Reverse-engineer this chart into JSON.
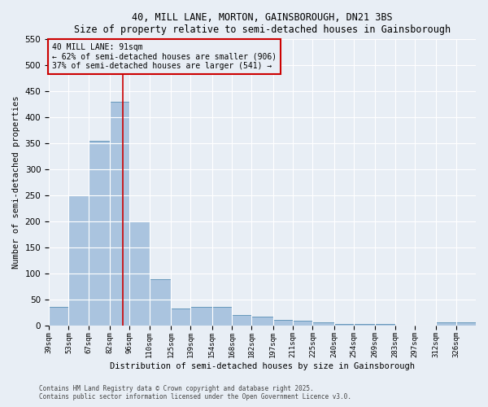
{
  "title": "40, MILL LANE, MORTON, GAINSBOROUGH, DN21 3BS",
  "subtitle": "Size of property relative to semi-detached houses in Gainsborough",
  "xlabel": "Distribution of semi-detached houses by size in Gainsborough",
  "ylabel": "Number of semi-detached properties",
  "bin_labels": [
    "39sqm",
    "53sqm",
    "67sqm",
    "82sqm",
    "96sqm",
    "110sqm",
    "125sqm",
    "139sqm",
    "154sqm",
    "168sqm",
    "182sqm",
    "197sqm",
    "211sqm",
    "225sqm",
    "240sqm",
    "254sqm",
    "269sqm",
    "283sqm",
    "297sqm",
    "312sqm",
    "326sqm"
  ],
  "bin_edges": [
    39,
    53,
    67,
    82,
    96,
    110,
    125,
    139,
    154,
    168,
    182,
    197,
    211,
    225,
    240,
    254,
    269,
    283,
    297,
    312,
    326,
    340
  ],
  "bar_heights": [
    35,
    250,
    355,
    430,
    200,
    88,
    32,
    35,
    35,
    20,
    17,
    10,
    8,
    6,
    3,
    3,
    3,
    0,
    0,
    5,
    5
  ],
  "bar_color": "#aac4df",
  "bar_edge_color": "#6699bb",
  "bg_color": "#e8eef5",
  "grid_color": "#ffffff",
  "vline_x": 91,
  "vline_color": "#cc0000",
  "annotation_text": "40 MILL LANE: 91sqm\n← 62% of semi-detached houses are smaller (906)\n37% of semi-detached houses are larger (541) →",
  "annotation_box_color": "#cc0000",
  "ylim": [
    0,
    550
  ],
  "yticks": [
    0,
    50,
    100,
    150,
    200,
    250,
    300,
    350,
    400,
    450,
    500,
    550
  ],
  "footer1": "Contains HM Land Registry data © Crown copyright and database right 2025.",
  "footer2": "Contains public sector information licensed under the Open Government Licence v3.0."
}
